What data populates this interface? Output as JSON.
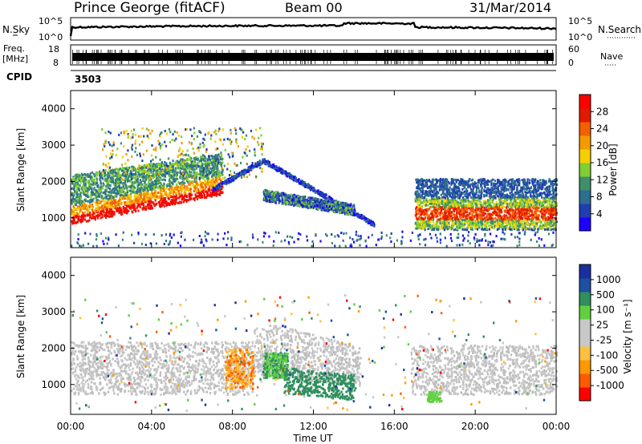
{
  "header": {
    "site": "Prince George (fitACF)",
    "beam": "Beam 00",
    "date": "31/Mar/2014"
  },
  "left_labels": {
    "nsky": "N.Sky",
    "freq_line1": "Freq.",
    "freq_line2": "[MHz]",
    "cpid": "CPID"
  },
  "right_labels": {
    "nsearch": "N.Search",
    "nave": "Nave"
  },
  "cpid_value": "3503",
  "colors": {
    "power": [
      "#1d00ff",
      "#1f3fb0",
      "#2e6e8f",
      "#3f8f6a",
      "#7fcf30",
      "#f3d000",
      "#f59a00",
      "#f36000",
      "#e41a00",
      "#ff0000"
    ],
    "velocity": [
      "#ff0000",
      "#ff5a00",
      "#ff9900",
      "#ffc040",
      "#c8c8c8",
      "#c8c8c8",
      "#60d040",
      "#2f8f5f",
      "#1f4fa0",
      "#1a2f9f"
    ],
    "ground_scatter": "#c0c0c0"
  },
  "chart_data": [
    {
      "type": "line",
      "panel": "noise",
      "y_ticks": [
        "10^5",
        "10^0"
      ],
      "y_ticks_right": [
        "10^5",
        "10^0"
      ],
      "left_label": "N.Sky",
      "right_label": "N.Search"
    },
    {
      "type": "line",
      "panel": "frequency",
      "y_ticks": [
        "18",
        "8"
      ],
      "y_ticks_right": [
        "60",
        "0"
      ],
      "left_label": "Freq. [MHz]",
      "right_label": "Nave"
    },
    {
      "type": "heatmap",
      "panel": "power",
      "ylabel": "Slant Range [km]",
      "y_ticks": [
        "4000",
        "3000",
        "2000",
        "1000"
      ],
      "ylim": [
        180,
        4500
      ],
      "colorbar": {
        "label": "Power [dB]",
        "ticks": [
          "28",
          "24",
          "20",
          "16",
          "12",
          "8",
          "4"
        ],
        "range": [
          0,
          30
        ]
      },
      "regions": [
        {
          "x": [
            0,
            7.5
          ],
          "y": [
            700,
            2100
          ],
          "level": "high"
        },
        {
          "x": [
            9.5,
            14
          ],
          "y": [
            900,
            1700
          ],
          "level": "low"
        },
        {
          "x": [
            17,
            24
          ],
          "y": [
            700,
            2000
          ],
          "level": "medium"
        }
      ]
    },
    {
      "type": "heatmap",
      "panel": "velocity",
      "ylabel": "Slant Range [km]",
      "xlabel": "Time UT",
      "x_ticks": [
        "00:00",
        "04:00",
        "08:00",
        "12:00",
        "16:00",
        "20:00",
        "00:00"
      ],
      "y_ticks": [
        "4000",
        "3000",
        "2000",
        "1000"
      ],
      "ylim": [
        180,
        4500
      ],
      "colorbar": {
        "label": "Velocity [m s⁻¹]",
        "ticks": [
          "1000",
          "500",
          "100",
          "25",
          "-25",
          "-100",
          "-500",
          "-1000"
        ],
        "range": [
          -1000,
          1000
        ]
      }
    }
  ]
}
